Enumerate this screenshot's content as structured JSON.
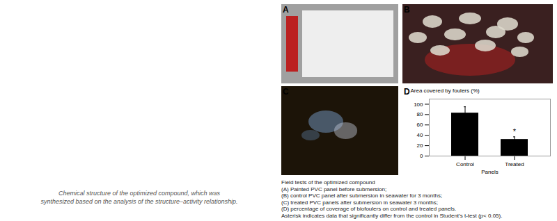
{
  "chart_data": {
    "type": "bar",
    "categories": [
      "Control",
      "Treated"
    ],
    "values": [
      83,
      32
    ],
    "errors": [
      12,
      5
    ],
    "color": "#000000",
    "xlabel": "Panels",
    "ylabel": "Area covered by foulers (%)",
    "ylim": [
      0,
      110
    ],
    "yticks": [
      0,
      20,
      40,
      60,
      80,
      100
    ],
    "annotations": [
      {
        "category": "Treated",
        "text": "*"
      }
    ],
    "panel_labels": [
      "A",
      "B",
      "C",
      "D"
    ],
    "caption_left": [
      "Chemical structure of the optimized compound, which was",
      "synthesized based on the analysis of the structure–activity relationship."
    ],
    "caption_right": [
      "Field tests of the optimized compound",
      "(A) Painted PVC panel before submersion;",
      "(B) control PVC panel after submersion in seawater for 3 months;",
      "(C) treated PVC panels after submersion in seawater 3 months;",
      "(D) percentage of coverage of biofoulers on control and treated panels.",
      "Asterisk indicates data that significantly differ from the control in Student’s t-test (p< 0.05)."
    ]
  }
}
